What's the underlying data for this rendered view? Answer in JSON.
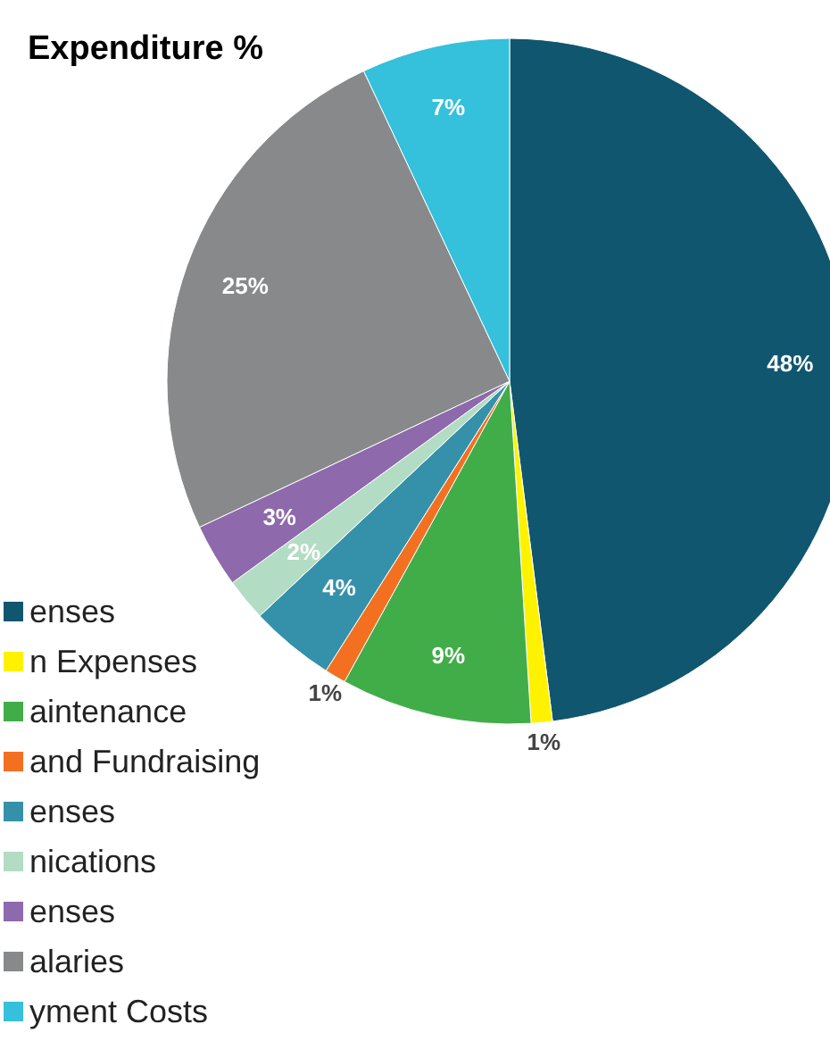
{
  "chart_data": {
    "type": "pie",
    "title": "Expenditure %",
    "categories": [
      "enses",
      "n Expenses",
      "aintenance",
      " and Fundraising",
      "enses",
      "nications",
      "enses",
      "alaries",
      "yment Costs"
    ],
    "values": [
      48,
      1,
      9,
      1,
      4,
      2,
      3,
      25,
      7
    ],
    "colors": [
      "#10566f",
      "#fff200",
      "#41ad49",
      "#f37021",
      "#3591aa",
      "#b3dcc4",
      "#8e69ab",
      "#87898a",
      "#35c0db"
    ],
    "value_labels": [
      "48%",
      "1%",
      "9%",
      "1%",
      "4%",
      "2%",
      "3%",
      "25%",
      "7%"
    ],
    "legend": "bottom left"
  }
}
